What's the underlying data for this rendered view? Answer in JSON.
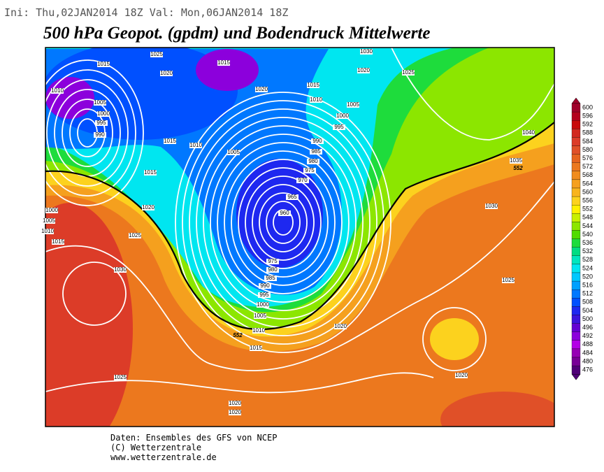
{
  "header": {
    "run_info": "Ini: Thu,02JAN2014 18Z  Val: Mon,06JAN2014 18Z",
    "title": "500 hPa Geopot. (gpdm) und Bodendruck Mittelwerte"
  },
  "colorbar": [
    {
      "value": 600,
      "color": "#a0002a"
    },
    {
      "value": 596,
      "color": "#b4001e"
    },
    {
      "value": 592,
      "color": "#c80a0a"
    },
    {
      "value": 588,
      "color": "#d2281e"
    },
    {
      "value": 584,
      "color": "#dc3c28"
    },
    {
      "value": 580,
      "color": "#e05028"
    },
    {
      "value": 576,
      "color": "#e6641e"
    },
    {
      "value": 572,
      "color": "#ec781e"
    },
    {
      "value": 568,
      "color": "#f08c1e"
    },
    {
      "value": 564,
      "color": "#f5a01e"
    },
    {
      "value": 560,
      "color": "#f8b41e"
    },
    {
      "value": 556,
      "color": "#fcd21e"
    },
    {
      "value": 552,
      "color": "#fff000"
    },
    {
      "value": 548,
      "color": "#c8f000"
    },
    {
      "value": 544,
      "color": "#8ce600"
    },
    {
      "value": 540,
      "color": "#50dc00"
    },
    {
      "value": 536,
      "color": "#1edc3c"
    },
    {
      "value": 532,
      "color": "#00dc82"
    },
    {
      "value": 528,
      "color": "#00e6be"
    },
    {
      "value": 524,
      "color": "#00e6f0"
    },
    {
      "value": 520,
      "color": "#00c8ff"
    },
    {
      "value": 516,
      "color": "#00a0ff"
    },
    {
      "value": 512,
      "color": "#0078ff"
    },
    {
      "value": 508,
      "color": "#0050ff"
    },
    {
      "value": 504,
      "color": "#1e28f0"
    },
    {
      "value": 500,
      "color": "#3c14dc"
    },
    {
      "value": 496,
      "color": "#6400d2"
    },
    {
      "value": 492,
      "color": "#8c00dc"
    },
    {
      "value": 488,
      "color": "#b400e6"
    },
    {
      "value": 484,
      "color": "#9600b4"
    },
    {
      "value": 480,
      "color": "#780096"
    },
    {
      "value": 476,
      "color": "#500078"
    }
  ],
  "isobar_labels": [
    1025,
    1015,
    1020,
    1015,
    1010,
    1005,
    1000,
    995,
    990,
    1020,
    1015,
    1010,
    1005,
    1000,
    995,
    1015,
    1010,
    1005,
    990,
    985,
    980,
    975,
    970,
    965,
    960,
    1015,
    1020,
    1000,
    1005,
    1010,
    1015,
    1025,
    1030,
    975,
    980,
    985,
    990,
    995,
    1000,
    1005,
    1010,
    1015,
    1020,
    1025,
    1020,
    1020,
    1030,
    1020,
    1025,
    1040,
    1035,
    1030,
    1025,
    1020
  ],
  "contour_labels": [
    552,
    552
  ],
  "footer": [
    "Daten: Ensembles des GFS von NCEP",
    "(C) Wetterzentrale",
    "www.wetterzentrale.de"
  ]
}
